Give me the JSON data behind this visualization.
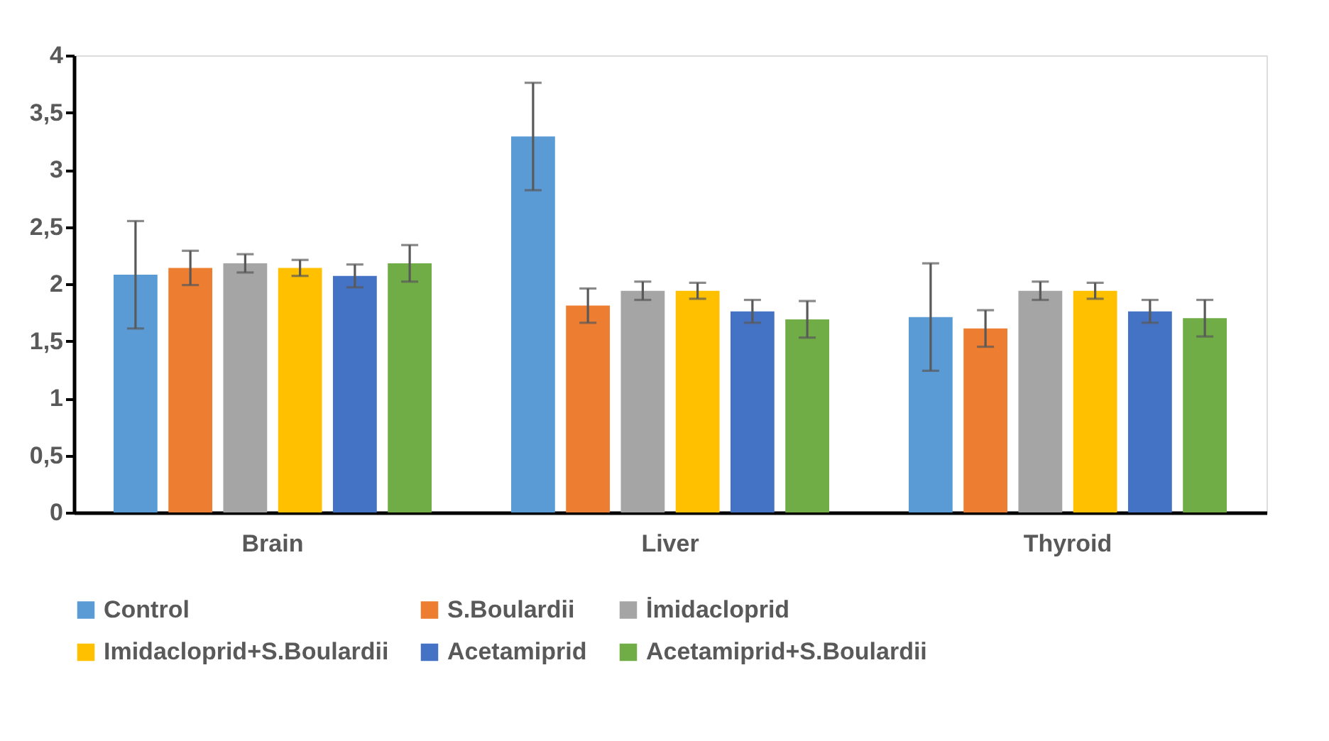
{
  "chart_data": {
    "type": "bar",
    "categories": [
      "Brain",
      "Liver",
      "Thyroid"
    ],
    "series": [
      {
        "name": "Control",
        "color": "#5b9bd5",
        "values": [
          2.08,
          3.29,
          1.71
        ],
        "errors": [
          0.47,
          0.47,
          0.47
        ]
      },
      {
        "name": "S.Boulardii",
        "color": "#ed7d31",
        "values": [
          2.14,
          1.81,
          1.61
        ],
        "errors": [
          0.15,
          0.15,
          0.16
        ]
      },
      {
        "name": "İmidacloprid",
        "color": "#a5a5a5",
        "values": [
          2.18,
          1.94,
          1.94
        ],
        "errors": [
          0.08,
          0.08,
          0.08
        ]
      },
      {
        "name": "Imidacloprid+S.Boulardii",
        "color": "#ffc000",
        "values": [
          2.14,
          1.94,
          1.94
        ],
        "errors": [
          0.07,
          0.07,
          0.07
        ]
      },
      {
        "name": "Acetamiprid",
        "color": "#4472c4",
        "values": [
          2.07,
          1.76,
          1.76
        ],
        "errors": [
          0.1,
          0.1,
          0.1
        ]
      },
      {
        "name": "Acetamiprid+S.Boulardii",
        "color": "#70ad47",
        "values": [
          2.18,
          1.69,
          1.7
        ],
        "errors": [
          0.16,
          0.16,
          0.16
        ]
      }
    ],
    "ylim": [
      0,
      4
    ],
    "yticks": [
      0,
      {
        "value": 0.5,
        "label": "0,5"
      },
      1,
      {
        "value": 1.5,
        "label": "1,5"
      },
      2,
      {
        "value": 2.5,
        "label": "2,5"
      },
      3,
      {
        "value": 3.5,
        "label": "3,5"
      },
      4
    ],
    "grid": false,
    "legend": "bottom"
  }
}
